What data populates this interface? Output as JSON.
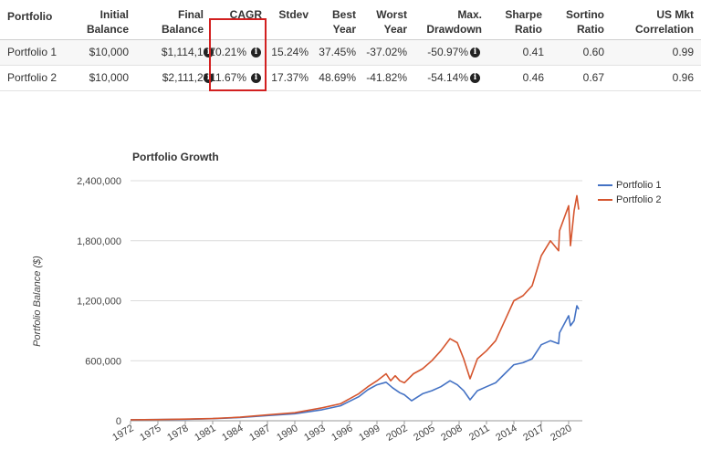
{
  "table": {
    "headers": [
      {
        "line1": "",
        "line2": "Portfolio"
      },
      {
        "line1": "Initial",
        "line2": "Balance"
      },
      {
        "line1": "Final",
        "line2": "Balance"
      },
      {
        "line1": "",
        "line2": "CAGR"
      },
      {
        "line1": "",
        "line2": "Stdev"
      },
      {
        "line1": "Best",
        "line2": "Year"
      },
      {
        "line1": "Worst",
        "line2": "Year"
      },
      {
        "line1": "Max.",
        "line2": "Drawdown"
      },
      {
        "line1": "Sharpe",
        "line2": "Ratio"
      },
      {
        "line1": "Sortino",
        "line2": "Ratio"
      },
      {
        "line1": "US Mkt",
        "line2": "Correlation"
      }
    ],
    "rows": [
      {
        "portfolio": "Portfolio 1",
        "initial": "$10,000",
        "final": "$1,114,107",
        "cagr": "10.21%",
        "stdev": "15.24%",
        "best": "37.45%",
        "worst": "-37.02%",
        "drawdown": "-50.97%",
        "sharpe": "0.41",
        "sortino": "0.60",
        "correlation": "0.99"
      },
      {
        "portfolio": "Portfolio 2",
        "initial": "$10,000",
        "final": "$2,111,281",
        "cagr": "11.67%",
        "stdev": "17.37%",
        "best": "48.69%",
        "worst": "-41.82%",
        "drawdown": "-54.14%",
        "sharpe": "0.46",
        "sortino": "0.67",
        "correlation": "0.96"
      }
    ],
    "highlight_color": "#d22020",
    "info_icon": "info-circle-icon"
  },
  "chart_data": {
    "type": "line",
    "title": "Portfolio Growth",
    "xlabel": "",
    "ylabel": "Portfolio Balance ($)",
    "ylim": [
      0,
      2400000
    ],
    "xlim": [
      1972,
      2021.5
    ],
    "yticks": [
      0,
      600000,
      1200000,
      1800000,
      2400000
    ],
    "ytick_labels": [
      "0",
      "600,000",
      "1,200,000",
      "1,800,000",
      "2,400,000"
    ],
    "xtick_labels": [
      "1972",
      "1975",
      "1978",
      "1981",
      "1984",
      "1987",
      "1990",
      "1993",
      "1996",
      "1999",
      "2002",
      "2005",
      "2008",
      "2011",
      "2014",
      "2017",
      "2020"
    ],
    "grid": true,
    "legend_position": "top-right",
    "series": [
      {
        "name": "Portfolio 1",
        "color": "#4472c4",
        "x": [
          1972,
          1975,
          1978,
          1981,
          1984,
          1987,
          1990,
          1993,
          1995,
          1997,
          1998,
          1999,
          2000,
          2000.7,
          2001.5,
          2002,
          2002.8,
          2004,
          2005,
          2006,
          2007,
          2007.8,
          2008.5,
          2009.2,
          2010,
          2011,
          2012,
          2013,
          2014,
          2015,
          2016,
          2017,
          2018,
          2018.9,
          2019,
          2020,
          2020.2,
          2020.6,
          2020.9,
          2021.1
        ],
        "y": [
          10000,
          12000,
          15000,
          21000,
          32000,
          52000,
          70000,
          110000,
          150000,
          240000,
          310000,
          360000,
          385000,
          330000,
          280000,
          260000,
          200000,
          270000,
          300000,
          340000,
          400000,
          360000,
          300000,
          210000,
          300000,
          340000,
          380000,
          470000,
          560000,
          580000,
          620000,
          760000,
          800000,
          770000,
          880000,
          1050000,
          950000,
          1000000,
          1150000,
          1114107
        ]
      },
      {
        "name": "Portfolio 2",
        "color": "#d5552e",
        "x": [
          1972,
          1975,
          1978,
          1981,
          1984,
          1987,
          1990,
          1993,
          1995,
          1997,
          1998,
          1999,
          2000,
          2000.5,
          2001,
          2001.5,
          2002,
          2003,
          2004,
          2005,
          2006,
          2007,
          2007.8,
          2008.5,
          2009.2,
          2010,
          2011,
          2012,
          2013,
          2014,
          2015,
          2016,
          2017,
          2018,
          2018.9,
          2019,
          2020,
          2020.2,
          2020.6,
          2020.9,
          2021.1
        ],
        "y": [
          10000,
          12000,
          16000,
          22000,
          36000,
          58000,
          80000,
          130000,
          170000,
          270000,
          340000,
          400000,
          470000,
          400000,
          450000,
          400000,
          380000,
          470000,
          520000,
          600000,
          700000,
          820000,
          780000,
          620000,
          420000,
          620000,
          700000,
          800000,
          1000000,
          1200000,
          1250000,
          1350000,
          1650000,
          1800000,
          1700000,
          1900000,
          2150000,
          1750000,
          2100000,
          2250000,
          2111281
        ]
      }
    ]
  }
}
